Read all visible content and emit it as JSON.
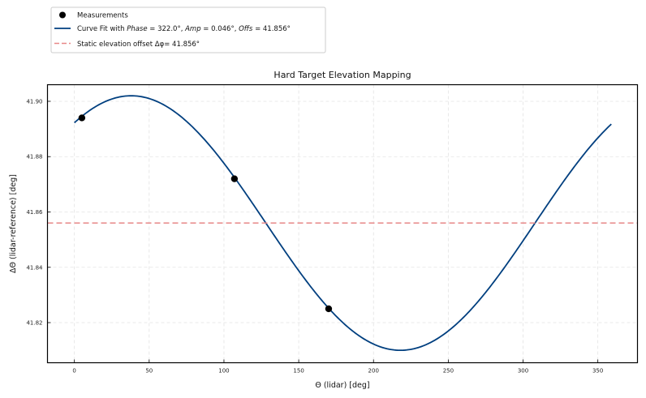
{
  "chart_data": {
    "type": "line",
    "title": "Hard Target Elevation Mapping",
    "xlabel": "Θ (lidar) [deg]",
    "ylabel": "ΔΘ (lidar-reference) [deg]",
    "xlim": [
      -18,
      376.5
    ],
    "ylim": [
      41.8055,
      41.906
    ],
    "xticks": [
      0,
      50,
      100,
      150,
      200,
      250,
      300,
      350
    ],
    "yticks": [
      41.82,
      41.84,
      41.86,
      41.88,
      41.9
    ],
    "ytick_labels": [
      "41.82",
      "41.84",
      "41.86",
      "41.88",
      "41.90"
    ],
    "grid": true,
    "legend_position": "above-left, outside axes",
    "series": [
      {
        "name": "Measurements",
        "type": "scatter",
        "color": "#000000",
        "x": [
          5,
          107,
          170
        ],
        "y": [
          41.894,
          41.872,
          41.825
        ]
      },
      {
        "name": "Curve Fit with Phase = 322.0°, Amp = 0.046°, Offs = 41.856°",
        "type": "line",
        "color": "#003f7f",
        "model": "Offs + Amp*cos(x + Phase)",
        "phase": 322.0,
        "amp": 0.046,
        "offs": 41.856,
        "x_range": [
          0,
          359
        ]
      },
      {
        "name": "Static elevation offset Δφ= 41.856°",
        "type": "hline",
        "color": "#e88888",
        "dash": true,
        "y": 41.856
      }
    ]
  },
  "legend": {
    "measurements_label": "Measurements",
    "fit_prefix": "Curve Fit with ",
    "fit_phase_name": "Phase",
    "fit_phase_value": " = 322.0°, ",
    "fit_amp_name": "Amp",
    "fit_amp_value": " = 0.046°, ",
    "fit_offs_name": "Offs",
    "fit_offs_value": " = 41.856°",
    "offset_label": "Static elevation offset Δφ= 41.856°"
  }
}
